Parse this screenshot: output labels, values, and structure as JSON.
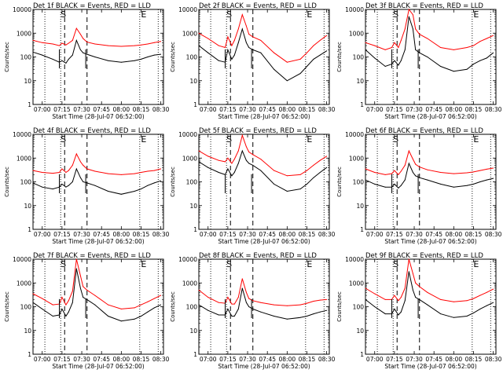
{
  "chart_data": [
    {
      "type": "line",
      "title": "Det 1f BLACK = Events, RED = LLD",
      "xlabel": "Start Time (28-Jul-07 06:52:00)",
      "ylabel": "Counts/sec",
      "yscale": "log",
      "ylim": [
        1,
        10000
      ],
      "x": [
        "06:53",
        "07:00",
        "07:08",
        "07:13",
        "07:15",
        "07:18",
        "07:20",
        "07:23",
        "07:26",
        "07:29",
        "07:31",
        "07:34",
        "07:40",
        "07:50",
        "08:00",
        "08:10",
        "08:15",
        "08:20",
        "08:25",
        "08:30"
      ],
      "series": [
        {
          "name": "BLACK = Events",
          "color": "#000000",
          "values": [
            160,
            120,
            80,
            60,
            70,
            55,
            80,
            120,
            500,
            200,
            150,
            130,
            100,
            70,
            60,
            70,
            80,
            100,
            120,
            130
          ]
        },
        {
          "name": "RED = LLD",
          "color": "#ff0000",
          "values": [
            500,
            400,
            350,
            300,
            380,
            320,
            380,
            500,
            1600,
            900,
            600,
            420,
            350,
            300,
            280,
            300,
            320,
            350,
            400,
            450
          ]
        }
      ]
    },
    {
      "type": "line",
      "title": "Det 2f BLACK = Events, RED = LLD",
      "xlabel": "Start Time (28-Jul-07 06:52:00)",
      "ylabel": "Counts/sec",
      "yscale": "log",
      "ylim": [
        1,
        10000
      ],
      "x": [
        "06:53",
        "07:00",
        "07:08",
        "07:13",
        "07:15",
        "07:18",
        "07:20",
        "07:23",
        "07:26",
        "07:29",
        "07:31",
        "07:34",
        "07:40",
        "07:50",
        "08:00",
        "08:10",
        "08:15",
        "08:20",
        "08:25",
        "08:30"
      ],
      "series": [
        {
          "name": "BLACK = Events",
          "color": "#000000",
          "values": [
            300,
            150,
            70,
            60,
            200,
            80,
            120,
            400,
            1500,
            400,
            250,
            200,
            150,
            30,
            10,
            20,
            40,
            80,
            120,
            180
          ]
        },
        {
          "name": "RED = LLD",
          "color": "#ff0000",
          "values": [
            1000,
            600,
            300,
            250,
            700,
            300,
            500,
            1500,
            6000,
            2000,
            900,
            700,
            500,
            150,
            60,
            80,
            150,
            300,
            500,
            800
          ]
        }
      ]
    },
    {
      "type": "line",
      "title": "Det 3f BLACK = Events, RED = LLD",
      "xlabel": "Start Time (28-Jul-07 06:52:00)",
      "ylabel": "Counts/sec",
      "yscale": "log",
      "ylim": [
        1,
        10000
      ],
      "x": [
        "06:53",
        "07:00",
        "07:08",
        "07:13",
        "07:15",
        "07:18",
        "07:20",
        "07:23",
        "07:26",
        "07:29",
        "07:31",
        "07:34",
        "07:40",
        "07:50",
        "08:00",
        "08:10",
        "08:15",
        "08:20",
        "08:25",
        "08:30"
      ],
      "series": [
        {
          "name": "BLACK = Events",
          "color": "#000000",
          "values": [
            200,
            90,
            40,
            50,
            70,
            45,
            70,
            200,
            5000,
            1500,
            200,
            150,
            100,
            40,
            25,
            30,
            50,
            70,
            90,
            150
          ]
        },
        {
          "name": "RED = LLD",
          "color": "#ff0000",
          "values": [
            400,
            300,
            200,
            250,
            400,
            250,
            500,
            1500,
            10000,
            6000,
            1500,
            900,
            600,
            250,
            200,
            250,
            300,
            450,
            600,
            800
          ]
        }
      ]
    },
    {
      "type": "line",
      "title": "Det 4f BLACK = Events, RED = LLD",
      "xlabel": "Start Time (28-Jul-07 06:52:00)",
      "ylabel": "Counts/sec",
      "yscale": "log",
      "ylim": [
        1,
        10000
      ],
      "x": [
        "06:53",
        "07:00",
        "07:08",
        "07:13",
        "07:15",
        "07:18",
        "07:20",
        "07:23",
        "07:26",
        "07:29",
        "07:31",
        "07:34",
        "07:40",
        "07:50",
        "08:00",
        "08:10",
        "08:15",
        "08:20",
        "08:25",
        "08:30"
      ],
      "series": [
        {
          "name": "BLACK = Events",
          "color": "#000000",
          "values": [
            90,
            60,
            50,
            60,
            80,
            60,
            70,
            100,
            350,
            150,
            100,
            90,
            70,
            40,
            30,
            40,
            50,
            70,
            90,
            110
          ]
        },
        {
          "name": "RED = LLD",
          "color": "#ff0000",
          "values": [
            300,
            250,
            230,
            250,
            350,
            250,
            300,
            500,
            1500,
            700,
            500,
            350,
            280,
            220,
            200,
            220,
            250,
            280,
            300,
            350
          ]
        }
      ]
    },
    {
      "type": "line",
      "title": "Det 5f BLACK = Events, RED = LLD",
      "xlabel": "Start Time (28-Jul-07 06:52:00)",
      "ylabel": "Counts/sec",
      "yscale": "log",
      "ylim": [
        1,
        10000
      ],
      "x": [
        "06:53",
        "07:00",
        "07:08",
        "07:13",
        "07:15",
        "07:18",
        "07:20",
        "07:23",
        "07:26",
        "07:29",
        "07:31",
        "07:34",
        "07:40",
        "07:50",
        "08:00",
        "08:10",
        "08:15",
        "08:20",
        "08:25",
        "08:30"
      ],
      "series": [
        {
          "name": "BLACK = Events",
          "color": "#000000",
          "values": [
            700,
            400,
            250,
            200,
            350,
            180,
            250,
            600,
            2000,
            800,
            600,
            500,
            300,
            80,
            40,
            50,
            80,
            150,
            250,
            400
          ]
        },
        {
          "name": "RED = LLD",
          "color": "#ff0000",
          "values": [
            2000,
            1200,
            800,
            700,
            1000,
            600,
            900,
            2000,
            9000,
            3000,
            1800,
            1400,
            900,
            300,
            180,
            200,
            300,
            500,
            800,
            1200
          ]
        }
      ]
    },
    {
      "type": "line",
      "title": "Det 6f BLACK = Events, RED = LLD",
      "xlabel": "Start Time (28-Jul-07 06:52:00)",
      "ylabel": "Counts/sec",
      "yscale": "log",
      "ylim": [
        1,
        10000
      ],
      "x": [
        "06:53",
        "07:00",
        "07:08",
        "07:13",
        "07:15",
        "07:18",
        "07:20",
        "07:23",
        "07:26",
        "07:29",
        "07:31",
        "07:34",
        "07:40",
        "07:50",
        "08:00",
        "08:10",
        "08:15",
        "08:20",
        "08:25",
        "08:30"
      ],
      "series": [
        {
          "name": "BLACK = Events",
          "color": "#000000",
          "values": [
            120,
            80,
            60,
            60,
            80,
            55,
            70,
            120,
            600,
            250,
            180,
            150,
            120,
            80,
            60,
            70,
            80,
            100,
            120,
            140
          ]
        },
        {
          "name": "RED = LLD",
          "color": "#ff0000",
          "values": [
            350,
            250,
            200,
            220,
            300,
            200,
            280,
            500,
            2000,
            900,
            550,
            420,
            320,
            250,
            220,
            240,
            260,
            300,
            340,
            380
          ]
        }
      ]
    },
    {
      "type": "line",
      "title": "Det 7f BLACK = Events, RED = LLD",
      "xlabel": "Start Time (28-Jul-07 06:52:00)",
      "ylabel": "Counts/sec",
      "yscale": "log",
      "ylim": [
        1,
        10000
      ],
      "x": [
        "06:53",
        "07:00",
        "07:08",
        "07:13",
        "07:15",
        "07:18",
        "07:20",
        "07:23",
        "07:26",
        "07:29",
        "07:31",
        "07:34",
        "07:40",
        "07:50",
        "08:00",
        "08:10",
        "08:15",
        "08:20",
        "08:25",
        "08:30"
      ],
      "series": [
        {
          "name": "BLACK = Events",
          "color": "#000000",
          "values": [
            150,
            80,
            40,
            45,
            80,
            40,
            60,
            150,
            4000,
            600,
            250,
            200,
            120,
            40,
            25,
            30,
            40,
            60,
            90,
            120
          ]
        },
        {
          "name": "RED = LLD",
          "color": "#ff0000",
          "values": [
            350,
            220,
            120,
            130,
            250,
            120,
            180,
            450,
            10000,
            2000,
            700,
            500,
            300,
            120,
            80,
            90,
            120,
            160,
            220,
            300
          ]
        }
      ]
    },
    {
      "type": "line",
      "title": "Det 8f BLACK = Events, RED = LLD",
      "xlabel": "Start Time (28-Jul-07 06:52:00)",
      "ylabel": "Counts/sec",
      "yscale": "log",
      "ylim": [
        1,
        10000
      ],
      "x": [
        "06:53",
        "07:00",
        "07:08",
        "07:13",
        "07:15",
        "07:18",
        "07:20",
        "07:23",
        "07:26",
        "07:29",
        "07:31",
        "07:34",
        "07:40",
        "07:50",
        "08:00",
        "08:10",
        "08:15",
        "08:20",
        "08:25",
        "08:30"
      ],
      "series": [
        {
          "name": "BLACK = Events",
          "color": "#000000",
          "values": [
            120,
            70,
            45,
            45,
            80,
            40,
            40,
            80,
            600,
            150,
            100,
            80,
            60,
            40,
            30,
            35,
            40,
            50,
            60,
            70
          ]
        },
        {
          "name": "RED = LLD",
          "color": "#ff0000",
          "values": [
            500,
            250,
            150,
            140,
            250,
            130,
            130,
            250,
            1500,
            400,
            220,
            180,
            150,
            120,
            110,
            120,
            140,
            170,
            190,
            200
          ]
        }
      ]
    },
    {
      "type": "line",
      "title": "Det 9f BLACK = Events, RED = LLD",
      "xlabel": "Start Time (28-Jul-07 06:52:00)",
      "ylabel": "Counts/sec",
      "yscale": "log",
      "ylim": [
        1,
        10000
      ],
      "x": [
        "06:53",
        "07:00",
        "07:08",
        "07:13",
        "07:15",
        "07:18",
        "07:20",
        "07:23",
        "07:26",
        "07:29",
        "07:31",
        "07:34",
        "07:40",
        "07:50",
        "08:00",
        "08:10",
        "08:15",
        "08:20",
        "08:25",
        "08:30"
      ],
      "series": [
        {
          "name": "BLACK = Events",
          "color": "#000000",
          "values": [
            200,
            100,
            50,
            50,
            80,
            45,
            60,
            180,
            3000,
            500,
            250,
            200,
            120,
            50,
            35,
            40,
            55,
            80,
            110,
            150
          ]
        },
        {
          "name": "RED = LLD",
          "color": "#ff0000",
          "values": [
            600,
            350,
            200,
            200,
            300,
            180,
            250,
            600,
            10000,
            2500,
            1000,
            700,
            400,
            200,
            160,
            180,
            220,
            300,
            400,
            550
          ]
        }
      ]
    }
  ],
  "marker_labels": [
    "S",
    "E"
  ],
  "x_tick_labels": [
    "07:00",
    "07:15",
    "07:30",
    "07:45",
    "08:00",
    "08:15",
    "08:30"
  ],
  "y_tick_labels": [
    "1",
    "10",
    "100",
    "1000",
    "10000"
  ],
  "colors": {
    "events": "#000000",
    "lld": "#ff0000",
    "background": "#ffffff"
  }
}
